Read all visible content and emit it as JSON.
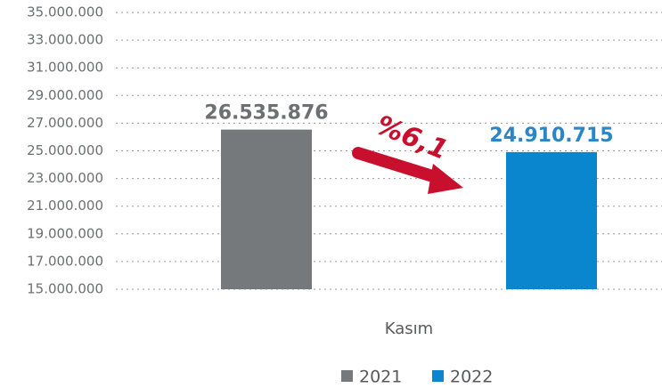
{
  "chart_data": {
    "type": "bar",
    "categories": [
      "Kasım"
    ],
    "series": [
      {
        "name": "2021",
        "color": "#76797b",
        "values": [
          26535876
        ],
        "value_labels": [
          "26.535.876"
        ],
        "label_color": "#6d6f71"
      },
      {
        "name": "2022",
        "color": "#0a86cf",
        "values": [
          24910715
        ],
        "value_labels": [
          "24.910.715"
        ],
        "label_color": "#2a86c6"
      }
    ],
    "ylim": [
      15000000,
      35000000
    ],
    "yticks": [
      {
        "value": 15000000,
        "label": "15.000.000"
      },
      {
        "value": 17000000,
        "label": "17.000.000"
      },
      {
        "value": 19000000,
        "label": "19.000.000"
      },
      {
        "value": 21000000,
        "label": "21.000.000"
      },
      {
        "value": 23000000,
        "label": "23.000.000"
      },
      {
        "value": 25000000,
        "label": "25.000.000"
      },
      {
        "value": 27000000,
        "label": "27.000.000"
      },
      {
        "value": 29000000,
        "label": "29.000.000"
      },
      {
        "value": 31000000,
        "label": "31.000.000"
      },
      {
        "value": 33000000,
        "label": "33.000.000"
      },
      {
        "value": 35000000,
        "label": "35.000.000"
      }
    ],
    "grid": true,
    "annotation": "%6,1",
    "legend": "bottom"
  }
}
